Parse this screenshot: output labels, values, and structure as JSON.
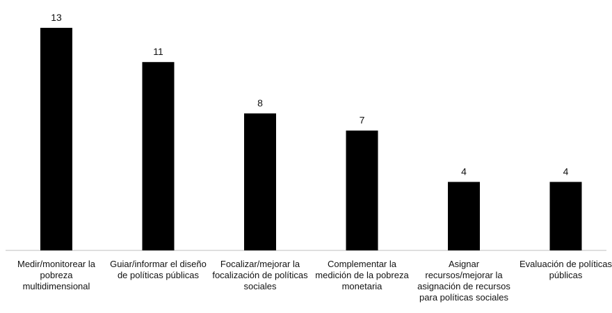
{
  "chart_data": {
    "type": "bar",
    "categories": [
      "Medir/monitorear la pobreza multidimensional",
      "Guiar/informar el diseño de políticas públicas",
      "Focalizar/mejorar la focalización de políticas sociales",
      "Complementar la medición de la pobreza monetaria",
      "Asignar recursos/mejorar la asignación de recursos para políticas sociales",
      "Evaluación de políticas públicas"
    ],
    "values": [
      13,
      11,
      8,
      7,
      4,
      4
    ],
    "data_labels": [
      "13",
      "11",
      "8",
      "7",
      "4",
      "4"
    ],
    "title": "",
    "xlabel": "",
    "ylabel": "",
    "ylim": [
      0,
      13
    ],
    "grid": false,
    "legend": "none",
    "colors": {
      "bar": "#000000",
      "axis": "#bfbfbf",
      "text": "#111111"
    }
  }
}
